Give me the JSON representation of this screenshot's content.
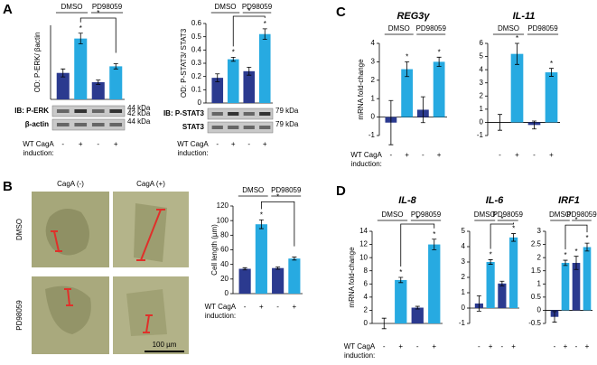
{
  "figure": {
    "panel_labels": [
      "A",
      "B",
      "C",
      "D"
    ],
    "micrographs": {
      "columns": [
        "CagA (-)",
        "CagA (+)"
      ],
      "rows": [
        "DMSO",
        "PD98059"
      ],
      "scale_bar": "100 µm"
    }
  },
  "chart_data": [
    {
      "type": "bar",
      "ylabel": "OD: P-ERK/ βactin",
      "group_labels": [
        "DMSO",
        "PD98059"
      ],
      "categories": [
        "-",
        "+",
        "-",
        "+"
      ],
      "values": [
        1.0,
        2.3,
        0.65,
        1.25
      ],
      "errors": [
        0.15,
        0.2,
        0.08,
        0.1
      ],
      "colors": [
        "#2b3a8f",
        "#27aae1",
        "#2b3a8f",
        "#27aae1"
      ],
      "ylim": [
        0,
        2.8
      ],
      "star_labels": [
        null,
        "*",
        null,
        null
      ],
      "bracket_label": "*",
      "xlabel_lines": [
        "WT CagA",
        "induction:"
      ],
      "blots": [
        {
          "label": "IB: P-ERK",
          "markers": [
            "44 kDa",
            "42 kDa"
          ]
        },
        {
          "label": "β-actin",
          "markers": [
            "44 kDa"
          ]
        }
      ]
    },
    {
      "type": "bar",
      "ylabel": "OD: P-STAT3/ STAT3",
      "group_labels": [
        "DMSO",
        "PD98059"
      ],
      "categories": [
        "-",
        "+",
        "-",
        "+"
      ],
      "values": [
        0.19,
        0.33,
        0.24,
        0.52
      ],
      "errors": [
        0.03,
        0.015,
        0.03,
        0.04
      ],
      "colors": [
        "#2b3a8f",
        "#27aae1",
        "#2b3a8f",
        "#27aae1"
      ],
      "ylim": [
        0,
        0.6
      ],
      "yticks": [
        0,
        0.1,
        0.2,
        0.3,
        0.4,
        0.5,
        0.6
      ],
      "star_labels": [
        null,
        "*",
        null,
        "*"
      ],
      "bracket_label": "*",
      "xlabel_lines": [
        "WT CagA",
        "induction:"
      ],
      "blots": [
        {
          "label": "IB: P-STAT3",
          "markers": [
            "79 kDa"
          ]
        },
        {
          "label": "STAT3",
          "markers": [
            "79 kDa"
          ]
        }
      ]
    },
    {
      "type": "bar",
      "ylabel": "Cell length (µm)",
      "group_labels": [
        "DMSO",
        "PD98059"
      ],
      "categories": [
        "-",
        "+",
        "-",
        "+"
      ],
      "values": [
        34,
        95,
        35,
        48
      ],
      "errors": [
        1.5,
        6,
        1.5,
        2
      ],
      "colors": [
        "#2b3a8f",
        "#27aae1",
        "#2b3a8f",
        "#27aae1"
      ],
      "ylim": [
        0,
        120
      ],
      "yticks": [
        0,
        20,
        40,
        60,
        80,
        100,
        120
      ],
      "star_labels": [
        null,
        "*",
        null,
        null
      ],
      "bracket_label": "*",
      "xlabel_lines": [
        "WT CagA",
        "induction:"
      ]
    },
    {
      "type": "bar",
      "title": "REG3γ",
      "ylabel": "mRNA fold-change",
      "group_labels": [
        "DMSO",
        "PD98059"
      ],
      "categories": [
        "-",
        "+",
        "-",
        "+"
      ],
      "values": [
        -0.3,
        2.6,
        0.4,
        3.0
      ],
      "errors": [
        1.2,
        0.4,
        0.7,
        0.25
      ],
      "colors": [
        "#2b3a8f",
        "#27aae1",
        "#2b3a8f",
        "#27aae1"
      ],
      "ylim": [
        -1,
        4
      ],
      "yticks": [
        -1,
        0,
        1,
        2,
        3,
        4
      ],
      "star_labels": [
        null,
        "*",
        null,
        "*"
      ],
      "xlabel_lines": [
        "WT CagA",
        "induction:"
      ]
    },
    {
      "type": "bar",
      "title": "IL-11",
      "group_labels": [
        "DMSO",
        "PD98059"
      ],
      "categories": [
        "-",
        "+",
        "-",
        "+"
      ],
      "values": [
        0,
        5.2,
        -0.2,
        3.8
      ],
      "errors": [
        0.6,
        0.8,
        0.3,
        0.3
      ],
      "colors": [
        "#2b3a8f",
        "#27aae1",
        "#2b3a8f",
        "#27aae1"
      ],
      "ylim": [
        -1,
        6
      ],
      "yticks": [
        -1,
        0,
        1,
        2,
        3,
        4,
        5,
        6
      ],
      "star_labels": [
        null,
        "*",
        null,
        "*"
      ]
    },
    {
      "type": "bar",
      "title": "IL-8",
      "ylabel": "mRNA fold-change",
      "group_labels": [
        "DMSO",
        "PD98059"
      ],
      "categories": [
        "-",
        "+",
        "-",
        "+"
      ],
      "values": [
        0,
        6.6,
        2.4,
        12
      ],
      "errors": [
        0.8,
        0.4,
        0.2,
        0.8
      ],
      "colors": [
        "#2b3a8f",
        "#27aae1",
        "#2b3a8f",
        "#27aae1"
      ],
      "ylim": [
        0,
        14
      ],
      "yticks": [
        0,
        2,
        4,
        6,
        8,
        10,
        12,
        14
      ],
      "star_labels": [
        null,
        "*",
        null,
        "*"
      ],
      "bracket_label": "*",
      "xlabel_lines": [
        "WT CagA",
        "induction:"
      ]
    },
    {
      "type": "bar",
      "title": "IL-6",
      "group_labels": [
        "DMSO",
        "PD98059"
      ],
      "categories": [
        "-",
        "+",
        "-",
        "+"
      ],
      "values": [
        0.3,
        3.0,
        1.6,
        4.6
      ],
      "errors": [
        0.5,
        0.15,
        0.15,
        0.25
      ],
      "colors": [
        "#2b3a8f",
        "#27aae1",
        "#2b3a8f",
        "#27aae1"
      ],
      "ylim": [
        -1,
        5
      ],
      "yticks": [
        -1,
        0,
        1,
        2,
        3,
        4,
        5
      ],
      "star_labels": [
        null,
        "*",
        null,
        "*"
      ],
      "bracket_label": "*"
    },
    {
      "type": "bar",
      "title": "IRF1",
      "group_labels": [
        "DMSO",
        "PD98059"
      ],
      "categories": [
        "-",
        "+",
        "-",
        "+"
      ],
      "values": [
        -0.25,
        1.8,
        1.8,
        2.4
      ],
      "errors": [
        0.2,
        0.1,
        0.25,
        0.15
      ],
      "colors": [
        "#2b3a8f",
        "#27aae1",
        "#2b3a8f",
        "#27aae1"
      ],
      "ylim": [
        -0.5,
        3
      ],
      "yticks": [
        -0.5,
        0,
        0.5,
        1,
        1.5,
        2,
        2.5,
        3
      ],
      "star_labels": [
        null,
        "*",
        "*",
        "*"
      ],
      "bracket_label": "*"
    }
  ]
}
